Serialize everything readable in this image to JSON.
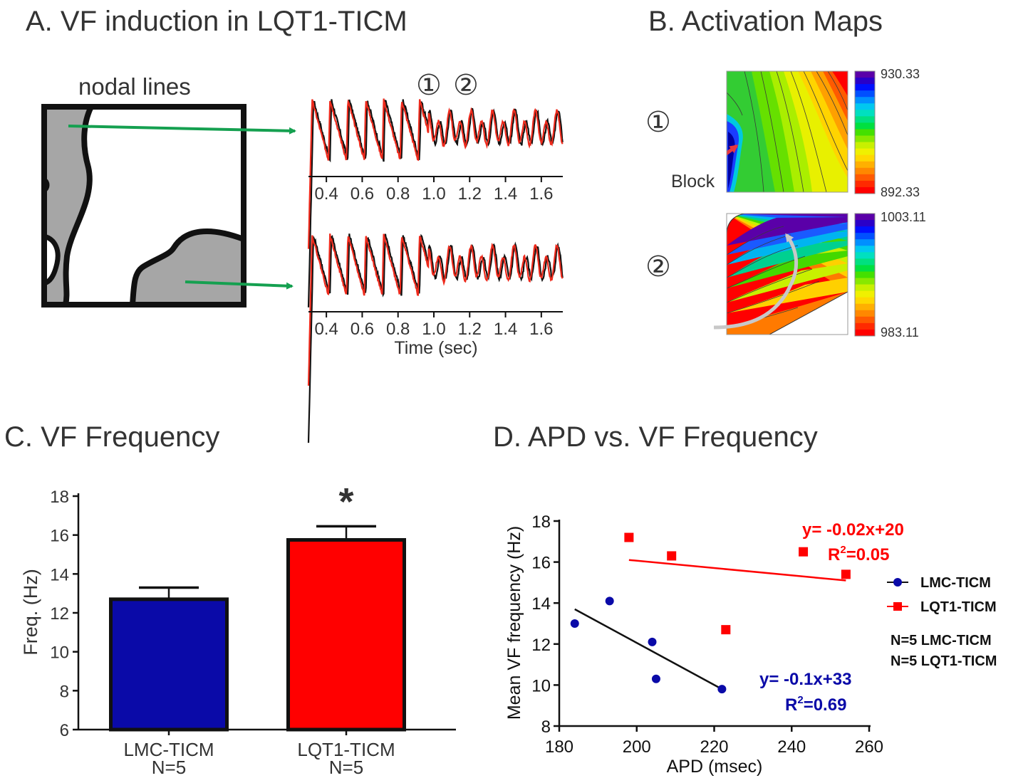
{
  "panel_titles": {
    "a": "A. VF induction in LQT1-TICM",
    "b": "B. Activation Maps",
    "c": "C. VF Frequency",
    "d": "D. APD vs. VF Frequency"
  },
  "panel_a": {
    "nodal_label": "nodal lines",
    "time_label": "Time (sec)",
    "marker_1": "①",
    "marker_2": "②"
  },
  "panel_b": {
    "marker_1": "①",
    "marker_2": "②",
    "block_label": "Block",
    "map1_max": "930.33",
    "map1_min": "892.33",
    "map2_max": "1003.11",
    "map2_min": "983.11"
  },
  "colors": {
    "blue_series": "#0a0aa8",
    "red_series": "#ff0000",
    "trace_black": "#111111",
    "trace_red": "#ee2a1c",
    "arrow_green": "#15a050",
    "nodal_gray": "#a6a6a6"
  },
  "chart_data": [
    {
      "type": "line",
      "panel": "A-top",
      "xlabel": "",
      "xlim": [
        0.3,
        1.72
      ],
      "xticks": [
        0.4,
        0.6,
        0.8,
        1.0,
        1.2,
        1.4,
        1.6
      ],
      "xtick_labels": [
        "0.4",
        "0.6",
        "0.8",
        "1.0",
        "1.2",
        "1.4",
        "1.6"
      ],
      "series": [
        {
          "color": "#111111"
        },
        {
          "color": "#ee2a1c"
        }
      ]
    },
    {
      "type": "line",
      "panel": "A-bottom",
      "xlabel": "Time (sec)",
      "xlim": [
        0.3,
        1.72
      ],
      "xticks": [
        0.4,
        0.6,
        0.8,
        1.0,
        1.2,
        1.4,
        1.6
      ],
      "xtick_labels": [
        "0.4",
        "0.6",
        "0.8",
        "1.0",
        "1.2",
        "1.4",
        "1.6"
      ],
      "series": [
        {
          "color": "#111111"
        },
        {
          "color": "#ee2a1c"
        }
      ]
    },
    {
      "type": "bar",
      "panel": "C",
      "categories": [
        "LMC-TICM",
        "LQT1-TICM"
      ],
      "category_sublabels": [
        "N=5",
        "N=5"
      ],
      "values": [
        12.7,
        15.75
      ],
      "errors": [
        0.6,
        0.7
      ],
      "colors": [
        "#0a0aa8",
        "#ff0000"
      ],
      "ylabel": "Freq. (Hz)",
      "ylim": [
        6,
        18
      ],
      "yticks": [
        6,
        8,
        10,
        12,
        14,
        16,
        18
      ],
      "annotation": "*"
    },
    {
      "type": "scatter",
      "panel": "D",
      "xlabel": "APD (msec)",
      "ylabel": "Mean VF frequency (Hz)",
      "xlim": [
        180,
        260
      ],
      "ylim": [
        8,
        18
      ],
      "xticks": [
        180,
        200,
        220,
        240,
        260
      ],
      "yticks": [
        8,
        10,
        12,
        14,
        16,
        18
      ],
      "legend_position": "right",
      "series": [
        {
          "name": "LMC-TICM",
          "color": "#0a0aa8",
          "marker": "circle",
          "points": [
            [
              184,
              13.0
            ],
            [
              193,
              14.1
            ],
            [
              204,
              12.1
            ],
            [
              205,
              10.3
            ],
            [
              222,
              9.8
            ]
          ],
          "fit": {
            "x": [
              184,
              222
            ],
            "y": [
              13.7,
              9.8
            ]
          },
          "equation": "y= -0.1x+33",
          "r2_prefix": "R",
          "r2_sup": "2",
          "r2_value": "=0.69"
        },
        {
          "name": "LQT1-TICM",
          "color": "#ff0000",
          "marker": "square",
          "points": [
            [
              198,
              17.2
            ],
            [
              209,
              16.3
            ],
            [
              223,
              12.7
            ],
            [
              243,
              16.5
            ],
            [
              254,
              15.4
            ]
          ],
          "fit": {
            "x": [
              198,
              254
            ],
            "y": [
              16.1,
              15.1
            ]
          },
          "equation": "y= -0.02x+20",
          "r2_prefix": "R",
          "r2_sup": "2",
          "r2_value": "=0.05"
        }
      ],
      "notes": [
        "N=5 LMC-TICM",
        "N=5 LQT1-TICM"
      ]
    }
  ]
}
